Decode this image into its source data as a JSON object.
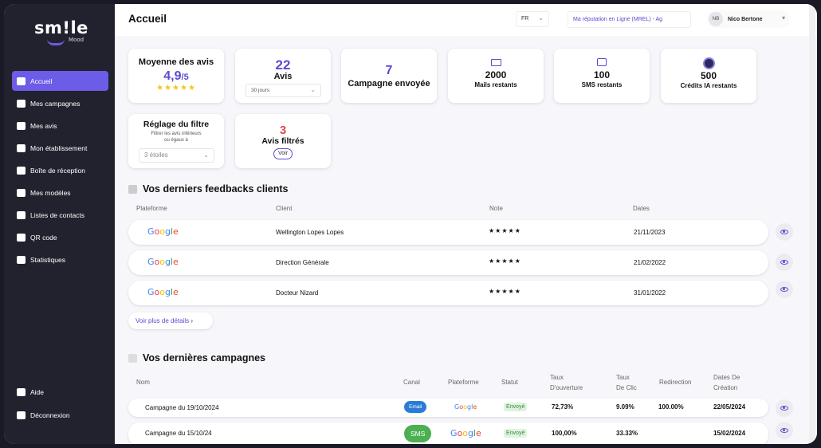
{
  "brand": {
    "logo_word": "sm!le",
    "logo_sub": "Mood"
  },
  "sidebar": {
    "items": [
      {
        "label": "Accueil",
        "icon": "home-icon"
      },
      {
        "label": "Mes campagnes",
        "icon": "campaign-icon"
      },
      {
        "label": "Mes avis",
        "icon": "reviews-icon"
      },
      {
        "label": "Mon établissement",
        "icon": "building-icon"
      },
      {
        "label": "Boîte de réception",
        "icon": "inbox-icon"
      },
      {
        "label": "Mes modèles",
        "icon": "templates-icon"
      },
      {
        "label": "Listes de contacts",
        "icon": "contacts-icon"
      },
      {
        "label": "QR code",
        "icon": "qr-icon"
      },
      {
        "label": "Statistiques",
        "icon": "stats-icon"
      }
    ],
    "bottom": [
      {
        "label": "Aide",
        "icon": "help-icon"
      },
      {
        "label": "Déconnexion",
        "icon": "logout-icon"
      }
    ]
  },
  "header": {
    "title": "Accueil",
    "lang": "FR",
    "reputation": "Ma réputation en Ligne (MREL) - Ag",
    "user_initials": "NB",
    "user_name": "Nico Bertone"
  },
  "stats": {
    "moyenne_title": "Moyenne des avis",
    "moyenne_value": "4,9",
    "moyenne_max": "/5",
    "moyenne_stars": "★★★★★",
    "avis_count": "22",
    "avis_label": "Avis",
    "avis_period": "30 jours",
    "campagne_count": "7",
    "campagne_label": "Campagne envoyée",
    "mails_count": "2000",
    "mails_label": "Mails restants",
    "sms_count": "100",
    "sms_label": "SMS restants",
    "ia_count": "500",
    "ia_label": "Crédits IA restants",
    "filtre_title": "Réglage du filtre",
    "filtre_desc": "Filtrer les avis inférieurs ou égaux à",
    "filtre_value": "3 étoiles",
    "filtres_count": "3",
    "filtres_label": "Avis filtrés",
    "voir_label": "Voir"
  },
  "feedbacks": {
    "title": "Vos derniers feedbacks clients",
    "columns": [
      "Plateforme",
      "Client",
      "Note",
      "Dates"
    ],
    "rows": [
      {
        "platform": "Google",
        "client": "Wellington Lopes Lopes",
        "note": "★★★★★",
        "date": "21/11/2023"
      },
      {
        "platform": "Google",
        "client": "Direction Générale",
        "note": "★★★★★",
        "date": "21/02/2022"
      },
      {
        "platform": "Google",
        "client": "Docteur Nizard",
        "note": "★★★★★",
        "date": "31/01/2022"
      }
    ],
    "more_label": "Voir plus de détails",
    "more_chevron": "›"
  },
  "campaigns": {
    "title": "Vos dernières campagnes",
    "columns": {
      "nom": "Nom",
      "canal": "Canal",
      "plateforme": "Plateforme",
      "statut": "Statut",
      "ouverture_1": "Taux",
      "ouverture_2": "D'ouverture",
      "clic_1": "Taux",
      "clic_2": "De Clic",
      "redirection": "Redirection",
      "creation_1": "Dates De",
      "creation_2": "Création"
    },
    "rows": [
      {
        "nom": "Campagne du 19/10/2024",
        "canal": "Email",
        "platform": "Google",
        "statut": "Envoyé",
        "ouverture": "72,73%",
        "clic": "9.09%",
        "redirection": "100.00%",
        "date": "22/05/2024"
      },
      {
        "nom": "Campagne du 15/10/24",
        "canal": "SMS",
        "platform": "Google",
        "statut": "Envoyé",
        "ouverture": "100,00%",
        "clic": "33.33%",
        "redirection": "",
        "date": "15/02/2024"
      }
    ]
  },
  "colors": {
    "accent": "#6c5ce7",
    "sidebar": "#22222e",
    "star": "#f5c518",
    "filtered": "#e04848"
  }
}
